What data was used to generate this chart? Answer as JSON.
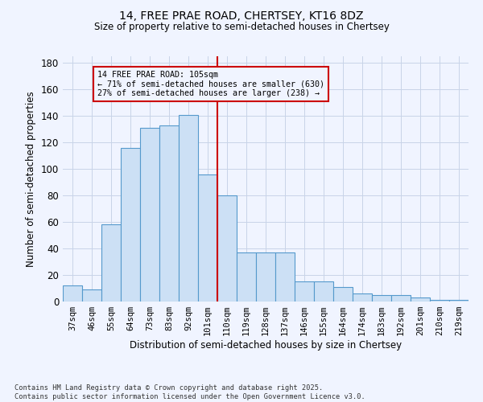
{
  "title1": "14, FREE PRAE ROAD, CHERTSEY, KT16 8DZ",
  "title2": "Size of property relative to semi-detached houses in Chertsey",
  "xlabel": "Distribution of semi-detached houses by size in Chertsey",
  "ylabel": "Number of semi-detached properties",
  "categories": [
    "37sqm",
    "46sqm",
    "55sqm",
    "64sqm",
    "73sqm",
    "83sqm",
    "92sqm",
    "101sqm",
    "110sqm",
    "119sqm",
    "128sqm",
    "137sqm",
    "146sqm",
    "155sqm",
    "164sqm",
    "174sqm",
    "183sqm",
    "192sqm",
    "201sqm",
    "210sqm",
    "219sqm"
  ],
  "values": [
    12,
    9,
    58,
    116,
    131,
    133,
    141,
    96,
    80,
    37,
    37,
    37,
    15,
    15,
    11,
    6,
    5,
    5,
    3,
    1,
    1
  ],
  "bar_color": "#cce0f5",
  "bar_edge_color": "#5599cc",
  "vline_x_idx": 7,
  "vline_color": "#cc0000",
  "annotation_text": "14 FREE PRAE ROAD: 105sqm\n← 71% of semi-detached houses are smaller (630)\n27% of semi-detached houses are larger (238) →",
  "annotation_box_color": "#cc0000",
  "ylim": [
    0,
    185
  ],
  "yticks": [
    0,
    20,
    40,
    60,
    80,
    100,
    120,
    140,
    160,
    180
  ],
  "footer1": "Contains HM Land Registry data © Crown copyright and database right 2025.",
  "footer2": "Contains public sector information licensed under the Open Government Licence v3.0.",
  "bg_color": "#f0f4ff",
  "grid_color": "#c8d4e8"
}
